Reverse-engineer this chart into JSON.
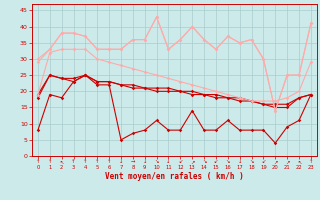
{
  "xlabel": "Vent moyen/en rafales ( km/h )",
  "xlim": [
    -0.5,
    23.5
  ],
  "ylim": [
    0,
    47
  ],
  "yticks": [
    0,
    5,
    10,
    15,
    20,
    25,
    30,
    35,
    40,
    45
  ],
  "xticks": [
    0,
    1,
    2,
    3,
    4,
    5,
    6,
    7,
    8,
    9,
    10,
    11,
    12,
    13,
    14,
    15,
    16,
    17,
    18,
    19,
    20,
    21,
    22,
    23
  ],
  "bg_color": "#cceaea",
  "grid_color": "#aacccc",
  "lines": [
    {
      "y": [
        8,
        19,
        18,
        23,
        25,
        22,
        22,
        5,
        7,
        8,
        11,
        8,
        8,
        14,
        8,
        8,
        11,
        8,
        8,
        8,
        4,
        9,
        11,
        19
      ],
      "color": "#cc0000",
      "lw": 0.8
    },
    {
      "y": [
        19,
        25,
        24,
        24,
        25,
        23,
        23,
        22,
        21,
        21,
        20,
        20,
        20,
        19,
        19,
        18,
        18,
        17,
        17,
        16,
        15,
        15,
        18,
        19
      ],
      "color": "#cc0000",
      "lw": 0.8
    },
    {
      "y": [
        18,
        25,
        24,
        23,
        25,
        23,
        23,
        22,
        22,
        21,
        21,
        21,
        20,
        20,
        19,
        19,
        18,
        18,
        17,
        16,
        16,
        16,
        18,
        19
      ],
      "color": "#cc0000",
      "lw": 0.8
    },
    {
      "y": [
        29,
        33,
        38,
        38,
        37,
        33,
        33,
        33,
        36,
        36,
        43,
        33,
        36,
        40,
        36,
        33,
        37,
        35,
        36,
        30,
        14,
        25,
        25,
        41
      ],
      "color": "#ffaaaa",
      "lw": 0.8
    },
    {
      "y": [
        19,
        32,
        33,
        33,
        33,
        30,
        29,
        28,
        27,
        26,
        25,
        24,
        23,
        22,
        21,
        20,
        19,
        18,
        17,
        17,
        17,
        18,
        20,
        29
      ],
      "color": "#ffaaaa",
      "lw": 0.8
    },
    {
      "y": [
        30,
        33,
        38,
        38,
        37,
        33,
        33,
        33,
        36,
        36,
        43,
        33,
        36,
        40,
        36,
        33,
        37,
        35,
        36,
        30,
        14,
        25,
        25,
        41
      ],
      "color": "#ffaaaa",
      "lw": 0.8
    }
  ],
  "wind_arrows": [
    "↑",
    "↑",
    "↖",
    "↑",
    "↑",
    "↑",
    "↑",
    "↓",
    "→",
    "↓",
    "↘",
    "↓",
    "↙",
    "↗",
    "↘",
    "↙",
    "↘",
    "↓",
    "↘",
    "↙",
    "↗",
    "↗",
    "↖",
    "↑"
  ],
  "axis_color": "#cc0000",
  "tick_color": "#cc0000",
  "label_color": "#cc0000"
}
